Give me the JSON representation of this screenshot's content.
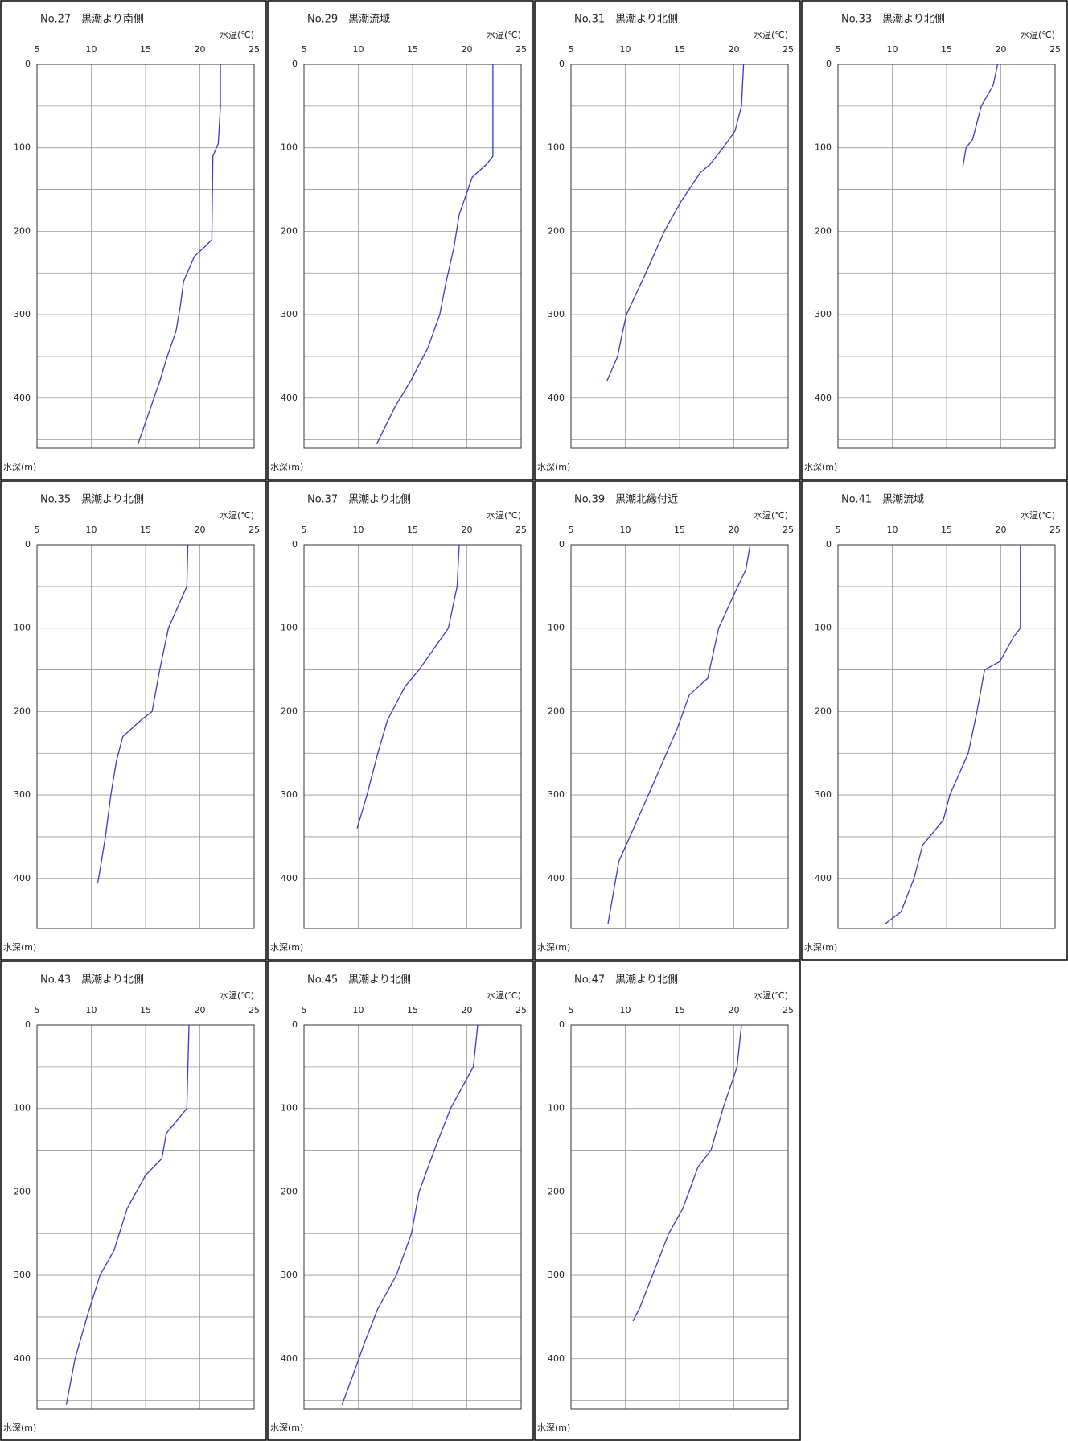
{
  "chart_data": [
    {
      "type": "line",
      "title": "No.27　黒潮より南側",
      "xlabel": "水温(℃)",
      "ylabel": "水深(m)",
      "color": "#3a3acc",
      "x": [
        21.9,
        21.9,
        21.7,
        21.2,
        21.1,
        20.5,
        19.5,
        18.5,
        18.2,
        17.8,
        17,
        16.3,
        15.5,
        14.3
      ],
      "values": [
        0,
        50,
        95,
        110,
        210,
        218,
        230,
        260,
        290,
        320,
        350,
        380,
        410,
        455
      ],
      "xlim": [
        5,
        25
      ],
      "xticks": [
        5,
        10,
        15,
        20,
        25
      ],
      "ylim": [
        0,
        460
      ],
      "yticks": [
        0,
        100,
        200,
        300,
        400
      ],
      "yminor": [
        50,
        150,
        250,
        350,
        450
      ],
      "grid": true
    },
    {
      "type": "line",
      "title": "No.29　黒潮流域",
      "xlabel": "水温(℃)",
      "ylabel": "水深(m)",
      "color": "#3a3acc",
      "x": [
        22.4,
        22.4,
        21.8,
        20.5,
        19.3,
        18.8,
        18.1,
        17.5,
        16.4,
        14.8,
        13.4,
        11.7
      ],
      "values": [
        0,
        110,
        120,
        135,
        180,
        220,
        260,
        300,
        340,
        380,
        410,
        455
      ],
      "xlim": [
        5,
        25
      ],
      "xticks": [
        5,
        10,
        15,
        20,
        25
      ],
      "ylim": [
        0,
        460
      ],
      "yticks": [
        0,
        100,
        200,
        300,
        400
      ],
      "yminor": [
        50,
        150,
        250,
        350,
        450
      ],
      "grid": true
    },
    {
      "type": "line",
      "title": "No.31　黒潮より北側",
      "xlabel": "水温(℃)",
      "ylabel": "水深(m)",
      "color": "#3a3acc",
      "x": [
        20.9,
        20.7,
        20.1,
        19,
        17.8,
        16.9,
        15.1,
        13.6,
        11.9,
        10.1,
        9.6,
        9.3,
        8.3
      ],
      "values": [
        0,
        50,
        80,
        100,
        120,
        130,
        165,
        200,
        250,
        300,
        330,
        350,
        380
      ],
      "xlim": [
        5,
        25
      ],
      "xticks": [
        5,
        10,
        15,
        20,
        25
      ],
      "ylim": [
        0,
        460
      ],
      "yticks": [
        0,
        100,
        200,
        300,
        400
      ],
      "yminor": [
        50,
        150,
        250,
        350,
        450
      ],
      "grid": true
    },
    {
      "type": "line",
      "title": "No.33　黒潮より北側",
      "xlabel": "水温(℃)",
      "ylabel": "水深(m)",
      "color": "#3a3acc",
      "x": [
        19.7,
        19.3,
        18.2,
        17.4,
        16.8,
        16.5
      ],
      "values": [
        0,
        25,
        50,
        90,
        100,
        122
      ],
      "xlim": [
        5,
        25
      ],
      "xticks": [
        5,
        10,
        15,
        20,
        25
      ],
      "ylim": [
        0,
        460
      ],
      "yticks": [
        0,
        100,
        200,
        300,
        400
      ],
      "yminor": [
        50,
        150,
        250,
        350,
        450
      ],
      "grid": true
    },
    {
      "type": "line",
      "title": "No.35　黒潮より北側",
      "xlabel": "水温(℃)",
      "ylabel": "水深(m)",
      "color": "#3a3acc",
      "x": [
        18.9,
        18.8,
        17.1,
        16.3,
        15.6,
        14.6,
        12.9,
        12.3,
        11.8,
        11.3,
        10.8,
        10.6
      ],
      "values": [
        0,
        50,
        100,
        150,
        200,
        210,
        230,
        260,
        300,
        350,
        390,
        405
      ],
      "xlim": [
        5,
        25
      ],
      "xticks": [
        5,
        10,
        15,
        20,
        25
      ],
      "ylim": [
        0,
        460
      ],
      "yticks": [
        0,
        100,
        200,
        300,
        400
      ],
      "yminor": [
        50,
        150,
        250,
        350,
        450
      ],
      "grid": true
    },
    {
      "type": "line",
      "title": "No.37　黒潮より北側",
      "xlabel": "水温(℃)",
      "ylabel": "水深(m)",
      "color": "#3a3acc",
      "x": [
        19.3,
        19.1,
        18.3,
        15.6,
        14.3,
        12.7,
        11.8,
        10.8,
        9.9
      ],
      "values": [
        0,
        50,
        100,
        150,
        170,
        210,
        250,
        300,
        340
      ],
      "xlim": [
        5,
        25
      ],
      "xticks": [
        5,
        10,
        15,
        20,
        25
      ],
      "ylim": [
        0,
        460
      ],
      "yticks": [
        0,
        100,
        200,
        300,
        400
      ],
      "yminor": [
        50,
        150,
        250,
        350,
        450
      ],
      "grid": true
    },
    {
      "type": "line",
      "title": "No.39　黒潮北縁付近",
      "xlabel": "水温(℃)",
      "ylabel": "水深(m)",
      "color": "#3a3acc",
      "x": [
        21.5,
        21.1,
        20,
        18.6,
        17.6,
        15.9,
        14.8,
        12.8,
        11.1,
        9.4,
        8.4
      ],
      "values": [
        0,
        30,
        60,
        100,
        160,
        180,
        220,
        280,
        330,
        380,
        455
      ],
      "xlim": [
        5,
        25
      ],
      "xticks": [
        5,
        10,
        15,
        20,
        25
      ],
      "ylim": [
        0,
        460
      ],
      "yticks": [
        0,
        100,
        200,
        300,
        400
      ],
      "yminor": [
        50,
        150,
        250,
        350,
        450
      ],
      "grid": true
    },
    {
      "type": "line",
      "title": "No.41　黒潮流域",
      "xlabel": "水温(℃)",
      "ylabel": "水深(m)",
      "color": "#3a3acc",
      "x": [
        21.8,
        21.8,
        21.2,
        19.9,
        18.5,
        17.8,
        17,
        15.3,
        14.7,
        12.8,
        12,
        10.8,
        9.3
      ],
      "values": [
        0,
        100,
        110,
        140,
        150,
        200,
        250,
        300,
        330,
        360,
        400,
        440,
        455
      ],
      "xlim": [
        5,
        25
      ],
      "xticks": [
        5,
        10,
        15,
        20,
        25
      ],
      "ylim": [
        0,
        460
      ],
      "yticks": [
        0,
        100,
        200,
        300,
        400
      ],
      "yminor": [
        50,
        150,
        250,
        350,
        450
      ],
      "grid": true
    },
    {
      "type": "line",
      "title": "No.43　黒潮より北側",
      "xlabel": "水温(℃)",
      "ylabel": "水深(m)",
      "color": "#3a3acc",
      "x": [
        19,
        18.8,
        16.9,
        16.5,
        15,
        13.3,
        12.1,
        10.8,
        9.6,
        8.5,
        7.7
      ],
      "values": [
        0,
        100,
        130,
        160,
        180,
        220,
        270,
        300,
        350,
        400,
        455
      ],
      "xlim": [
        5,
        25
      ],
      "xticks": [
        5,
        10,
        15,
        20,
        25
      ],
      "ylim": [
        0,
        460
      ],
      "yticks": [
        0,
        100,
        200,
        300,
        400
      ],
      "yminor": [
        50,
        150,
        250,
        350,
        450
      ],
      "grid": true
    },
    {
      "type": "line",
      "title": "No.45　黒潮より北側",
      "xlabel": "水温(℃)",
      "ylabel": "水深(m)",
      "color": "#3a3acc",
      "x": [
        21,
        20.6,
        18.5,
        17,
        15.6,
        14.9,
        13.5,
        11.8,
        10.6,
        9.5,
        8.5
      ],
      "values": [
        0,
        50,
        100,
        150,
        200,
        250,
        300,
        340,
        380,
        420,
        455
      ],
      "xlim": [
        5,
        25
      ],
      "xticks": [
        5,
        10,
        15,
        20,
        25
      ],
      "ylim": [
        0,
        460
      ],
      "yticks": [
        0,
        100,
        200,
        300,
        400
      ],
      "yminor": [
        50,
        150,
        250,
        350,
        450
      ],
      "grid": true
    },
    {
      "type": "line",
      "title": "No.47　黒潮より北側",
      "xlabel": "水温(℃)",
      "ylabel": "水深(m)",
      "color": "#3a3acc",
      "x": [
        20.7,
        20.3,
        19,
        17.9,
        16.7,
        15.3,
        14,
        12.5,
        11.3,
        10.7
      ],
      "values": [
        0,
        50,
        100,
        150,
        170,
        220,
        250,
        300,
        340,
        355
      ],
      "xlim": [
        5,
        25
      ],
      "xticks": [
        5,
        10,
        15,
        20,
        25
      ],
      "ylim": [
        0,
        460
      ],
      "yticks": [
        0,
        100,
        200,
        300,
        400
      ],
      "yminor": [
        50,
        150,
        250,
        350,
        450
      ],
      "grid": true
    }
  ]
}
